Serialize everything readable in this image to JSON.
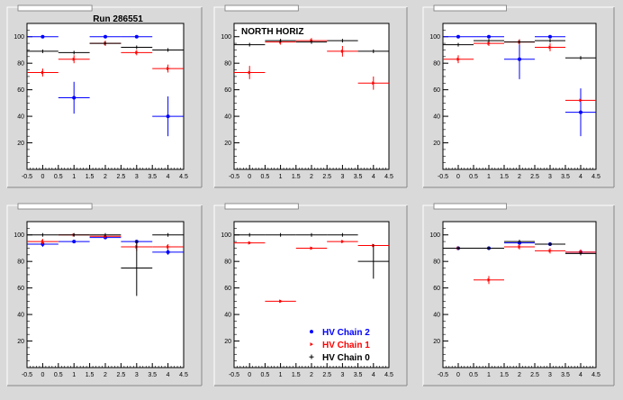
{
  "run_label": "Run 286551",
  "colors": {
    "chain2": "#0000ff",
    "chain1": "#ff0000",
    "chain0": "#000000",
    "pad": "#d9d9d9",
    "frame": "#ffffff"
  },
  "legend": [
    {
      "label": "HV Chain 2",
      "color": "#0000ff",
      "marker": "circle"
    },
    {
      "label": "HV Chain 1",
      "color": "#ff0000",
      "marker": "triangle"
    },
    {
      "label": "HV Chain 0",
      "color": "#000000",
      "marker": "cross"
    }
  ],
  "chart_data": [
    {
      "type": "scatter",
      "title": "",
      "annotation": "Run 286551",
      "xlim": [
        -0.5,
        4.5
      ],
      "ylim": [
        0,
        110
      ],
      "xticks": [
        "-0.5",
        "0",
        "0.5",
        "1",
        "1.5",
        "2",
        "2.5",
        "3",
        "3.5",
        "4",
        "4.5"
      ],
      "yticks": [
        "20",
        "40",
        "60",
        "80",
        "100"
      ],
      "series": [
        {
          "name": "HV Chain 2",
          "points": [
            {
              "x": 0,
              "y": 100,
              "err": 0
            },
            {
              "x": 1,
              "y": 54,
              "err": 12
            },
            {
              "x": 2,
              "y": 100,
              "err": 0
            },
            {
              "x": 3,
              "y": 100,
              "err": 0
            },
            {
              "x": 4,
              "y": 40,
              "err": 15
            }
          ]
        },
        {
          "name": "HV Chain 1",
          "points": [
            {
              "x": 0,
              "y": 73,
              "err": 3
            },
            {
              "x": 1,
              "y": 83,
              "err": 3
            },
            {
              "x": 2,
              "y": 95,
              "err": 2
            },
            {
              "x": 3,
              "y": 88,
              "err": 2
            },
            {
              "x": 4,
              "y": 76,
              "err": 3
            }
          ]
        },
        {
          "name": "HV Chain 0",
          "points": [
            {
              "x": 0,
              "y": 89,
              "err": 0
            },
            {
              "x": 1,
              "y": 88,
              "err": 0
            },
            {
              "x": 2,
              "y": 95,
              "err": 0
            },
            {
              "x": 3,
              "y": 92,
              "err": 0
            },
            {
              "x": 4,
              "y": 90,
              "err": 0
            }
          ]
        }
      ]
    },
    {
      "type": "scatter",
      "title": "",
      "annotation": "NORTH HORIZ",
      "xlim": [
        -0.5,
        4.5
      ],
      "ylim": [
        0,
        110
      ],
      "xticks": [
        "-0.5",
        "0",
        "0.5",
        "1",
        "1.5",
        "2",
        "2.5",
        "3",
        "3.5",
        "4",
        "4.5"
      ],
      "yticks": [
        "20",
        "40",
        "60",
        "80",
        "100"
      ],
      "series": [
        {
          "name": "HV Chain 1",
          "points": [
            {
              "x": 0,
              "y": 73,
              "err": 5
            },
            {
              "x": 1,
              "y": 96,
              "err": 2
            },
            {
              "x": 2,
              "y": 97,
              "err": 2
            },
            {
              "x": 3,
              "y": 89,
              "err": 4
            },
            {
              "x": 4,
              "y": 65,
              "err": 5
            }
          ]
        },
        {
          "name": "HV Chain 0",
          "points": [
            {
              "x": 0,
              "y": 94,
              "err": 0
            },
            {
              "x": 1,
              "y": 97,
              "err": 0
            },
            {
              "x": 2,
              "y": 96,
              "err": 0
            },
            {
              "x": 3,
              "y": 97,
              "err": 0
            },
            {
              "x": 4,
              "y": 89,
              "err": 0
            }
          ]
        }
      ]
    },
    {
      "type": "scatter",
      "title": "",
      "annotation": "",
      "xlim": [
        -0.5,
        4.5
      ],
      "ylim": [
        0,
        110
      ],
      "xticks": [
        "-0.5",
        "0",
        "0.5",
        "1",
        "1.5",
        "2",
        "2.5",
        "3",
        "3.5",
        "4",
        "4.5"
      ],
      "yticks": [
        "20",
        "40",
        "60",
        "80",
        "100"
      ],
      "series": [
        {
          "name": "HV Chain 2",
          "points": [
            {
              "x": 0,
              "y": 100,
              "err": 0
            },
            {
              "x": 1,
              "y": 100,
              "err": 0
            },
            {
              "x": 2,
              "y": 83,
              "err": 15
            },
            {
              "x": 3,
              "y": 100,
              "err": 0
            },
            {
              "x": 4,
              "y": 43,
              "err": 18
            }
          ]
        },
        {
          "name": "HV Chain 1",
          "points": [
            {
              "x": 0,
              "y": 83,
              "err": 3
            },
            {
              "x": 1,
              "y": 95,
              "err": 2
            },
            {
              "x": 2,
              "y": 96,
              "err": 2
            },
            {
              "x": 3,
              "y": 92,
              "err": 3
            },
            {
              "x": 4,
              "y": 52,
              "err": 0
            }
          ]
        },
        {
          "name": "HV Chain 0",
          "points": [
            {
              "x": 0,
              "y": 94,
              "err": 0
            },
            {
              "x": 1,
              "y": 97,
              "err": 0
            },
            {
              "x": 2,
              "y": 96,
              "err": 0
            },
            {
              "x": 3,
              "y": 97,
              "err": 0
            },
            {
              "x": 4,
              "y": 84,
              "err": 0
            }
          ]
        }
      ]
    },
    {
      "type": "scatter",
      "title": "",
      "annotation": "",
      "xlim": [
        -0.5,
        4.5
      ],
      "ylim": [
        0,
        110
      ],
      "xticks": [
        "-0.5",
        "0",
        "0.5",
        "1",
        "1.5",
        "2",
        "2.5",
        "3",
        "3.5",
        "4",
        "4.5"
      ],
      "yticks": [
        "20",
        "40",
        "60",
        "80",
        "100"
      ],
      "series": [
        {
          "name": "HV Chain 2",
          "points": [
            {
              "x": 0,
              "y": 93,
              "err": 2
            },
            {
              "x": 1,
              "y": 95,
              "err": 1
            },
            {
              "x": 2,
              "y": 98,
              "err": 1
            },
            {
              "x": 3,
              "y": 95,
              "err": 1
            },
            {
              "x": 4,
              "y": 87,
              "err": 2
            }
          ]
        },
        {
          "name": "HV Chain 1",
          "points": [
            {
              "x": 0,
              "y": 95,
              "err": 2
            },
            {
              "x": 1,
              "y": 100,
              "err": 0
            },
            {
              "x": 2,
              "y": 99,
              "err": 1
            },
            {
              "x": 3,
              "y": 91,
              "err": 3
            },
            {
              "x": 4,
              "y": 91,
              "err": 2
            }
          ]
        },
        {
          "name": "HV Chain 0",
          "points": [
            {
              "x": 0,
              "y": 100,
              "err": 0
            },
            {
              "x": 1,
              "y": 100,
              "err": 0
            },
            {
              "x": 2,
              "y": 100,
              "err": 0
            },
            {
              "x": 3,
              "y": 75,
              "err": 21
            },
            {
              "x": 4,
              "y": 100,
              "err": 0
            }
          ]
        }
      ]
    },
    {
      "type": "scatter",
      "title": "",
      "annotation": "",
      "xlim": [
        -0.5,
        4.5
      ],
      "ylim": [
        0,
        110
      ],
      "xticks": [
        "-0.5",
        "0",
        "0.5",
        "1",
        "1.5",
        "2",
        "2.5",
        "3",
        "3.5",
        "4",
        "4.5"
      ],
      "yticks": [
        "20",
        "40",
        "60",
        "80",
        "100"
      ],
      "series": [
        {
          "name": "HV Chain 1",
          "points": [
            {
              "x": 0,
              "y": 94,
              "err": 1
            },
            {
              "x": 1,
              "y": 50,
              "err": 1
            },
            {
              "x": 2,
              "y": 90,
              "err": 1
            },
            {
              "x": 3,
              "y": 95,
              "err": 1
            },
            {
              "x": 4,
              "y": 92,
              "err": 1
            }
          ]
        },
        {
          "name": "HV Chain 0",
          "points": [
            {
              "x": 0,
              "y": 100,
              "err": 0
            },
            {
              "x": 1,
              "y": 100,
              "err": 0
            },
            {
              "x": 2,
              "y": 100,
              "err": 0
            },
            {
              "x": 3,
              "y": 100,
              "err": 0
            },
            {
              "x": 4,
              "y": 80,
              "err": 13
            }
          ]
        }
      ]
    },
    {
      "type": "scatter",
      "title": "",
      "annotation": "",
      "xlim": [
        -0.5,
        4.5
      ],
      "ylim": [
        0,
        110
      ],
      "xticks": [
        "-0.5",
        "0",
        "0.5",
        "1",
        "1.5",
        "2",
        "2.5",
        "3",
        "3.5",
        "4",
        "4.5"
      ],
      "yticks": [
        "20",
        "40",
        "60",
        "80",
        "100"
      ],
      "series": [
        {
          "name": "HV Chain 2",
          "points": [
            {
              "x": 0,
              "y": 90,
              "err": 1
            },
            {
              "x": 1,
              "y": 90,
              "err": 1
            },
            {
              "x": 2,
              "y": 94,
              "err": 1
            },
            {
              "x": 3,
              "y": 93,
              "err": 1
            },
            {
              "x": 4,
              "y": 87,
              "err": 2
            }
          ]
        },
        {
          "name": "HV Chain 1",
          "points": [
            {
              "x": 0,
              "y": 90,
              "err": 1
            },
            {
              "x": 1,
              "y": 66,
              "err": 3
            },
            {
              "x": 2,
              "y": 91,
              "err": 2
            },
            {
              "x": 3,
              "y": 88,
              "err": 2
            },
            {
              "x": 4,
              "y": 87,
              "err": 2
            }
          ]
        },
        {
          "name": "HV Chain 0",
          "points": [
            {
              "x": 0,
              "y": 90,
              "err": 0
            },
            {
              "x": 1,
              "y": 90,
              "err": 0
            },
            {
              "x": 2,
              "y": 95,
              "err": 0
            },
            {
              "x": 3,
              "y": 93,
              "err": 0
            },
            {
              "x": 4,
              "y": 86,
              "err": 0
            }
          ]
        }
      ]
    }
  ]
}
